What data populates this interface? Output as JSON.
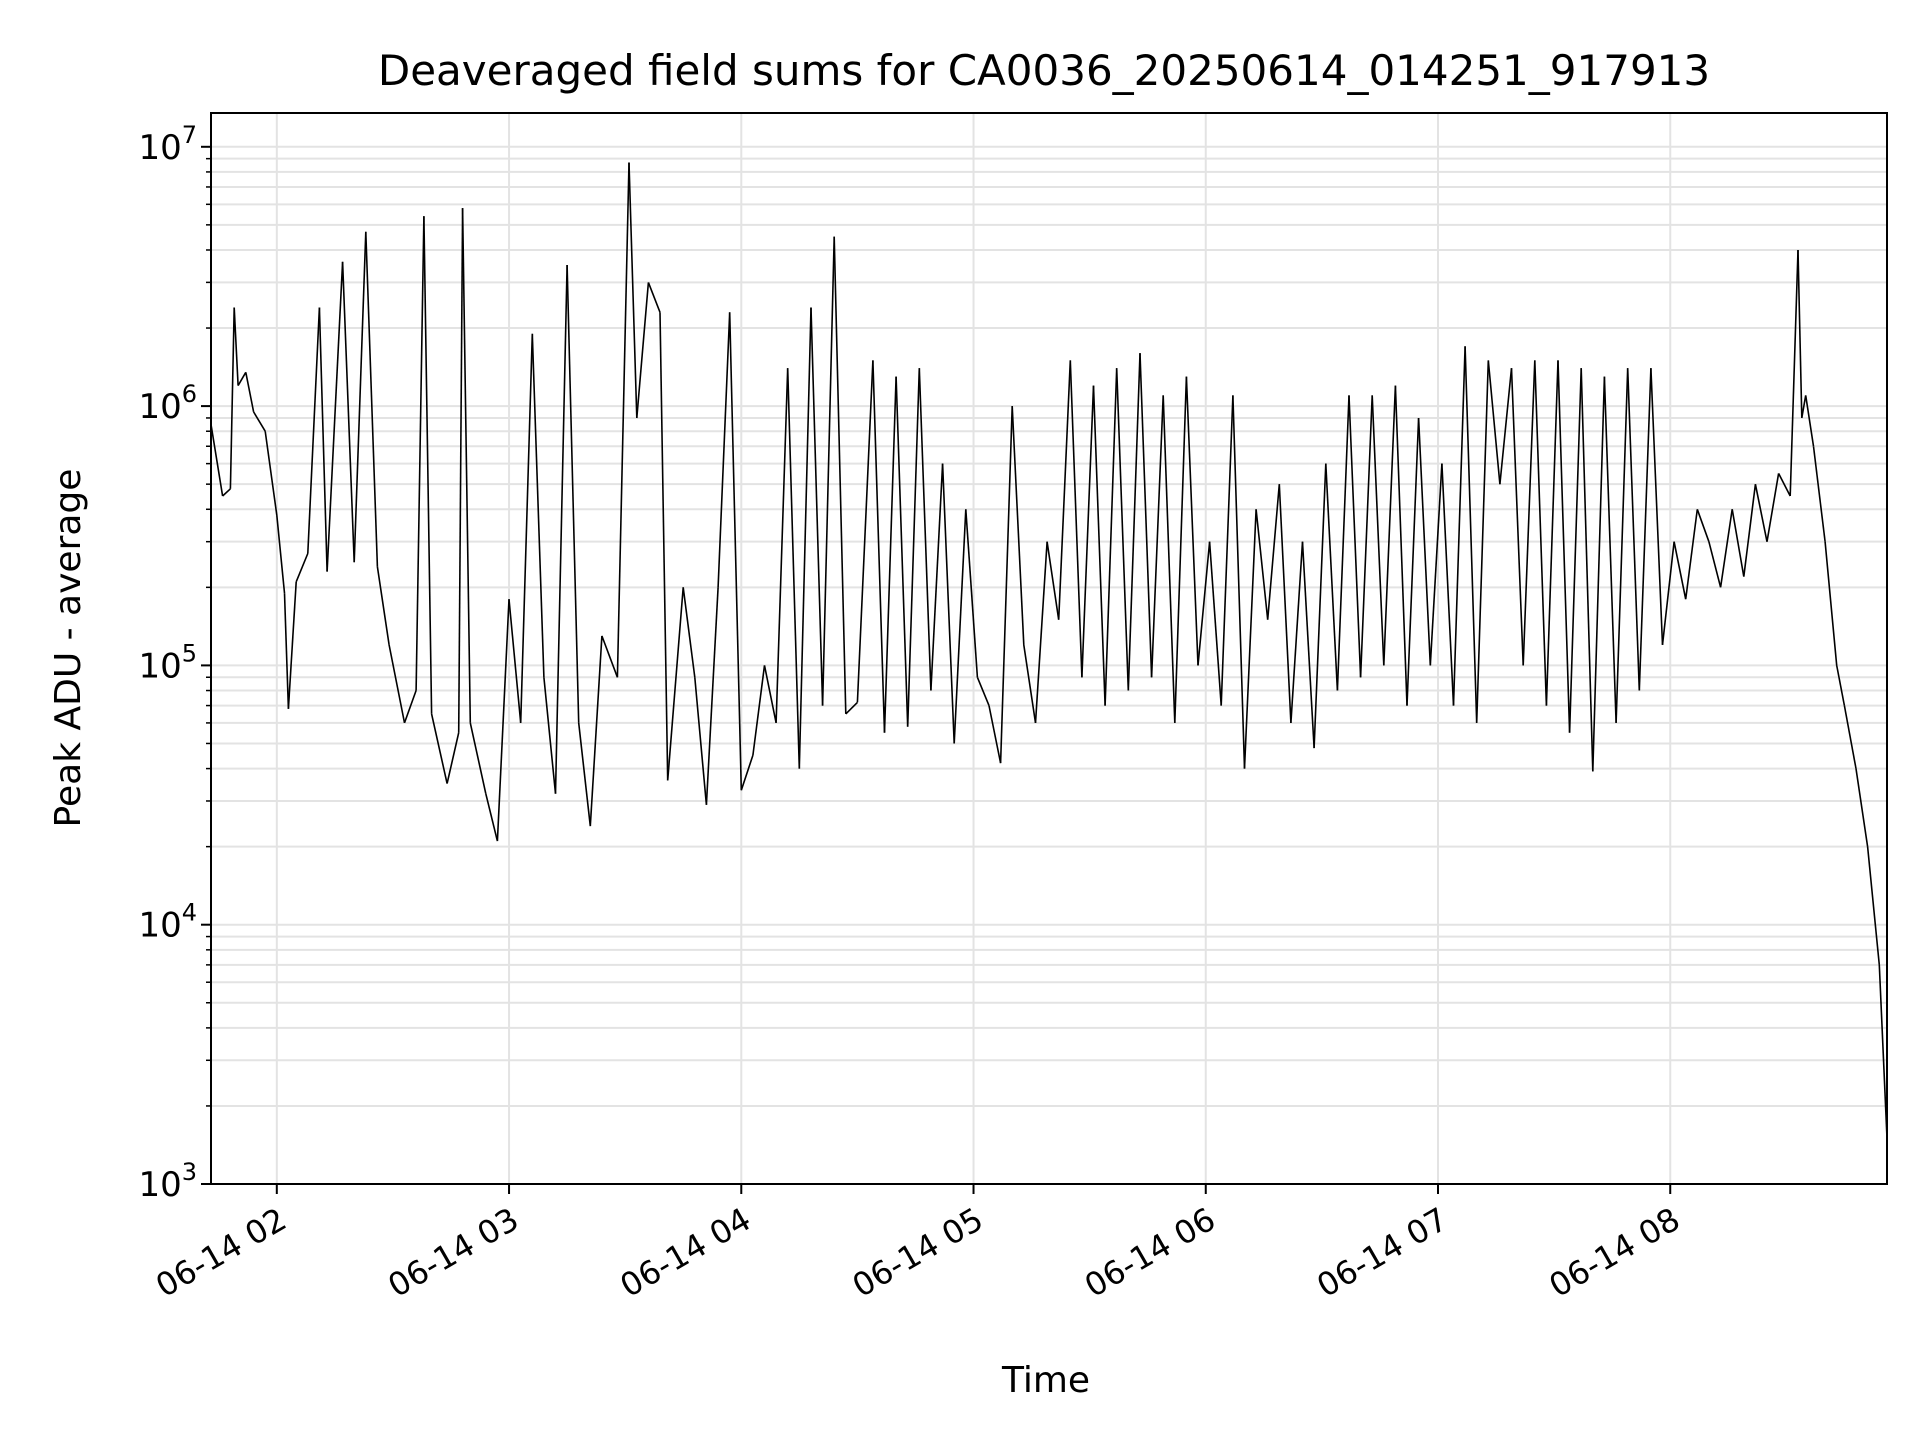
{
  "chart_data": {
    "type": "line",
    "title": "Deaveraged field sums for CA0036_20250614_014251_917913",
    "xlabel": "Time",
    "ylabel": "Peak ADU - average",
    "x_axis": {
      "kind": "time",
      "range": [
        "06-14 01:43:00",
        "06-14 08:56:00"
      ],
      "ticks": [
        {
          "label": "06-14 02",
          "value": "06-14 02:00"
        },
        {
          "label": "06-14 03",
          "value": "06-14 03:00"
        },
        {
          "label": "06-14 04",
          "value": "06-14 04:00"
        },
        {
          "label": "06-14 05",
          "value": "06-14 05:00"
        },
        {
          "label": "06-14 06",
          "value": "06-14 06:00"
        },
        {
          "label": "06-14 07",
          "value": "06-14 07:00"
        },
        {
          "label": "06-14 08",
          "value": "06-14 08:00"
        }
      ],
      "tick_label_rotation": 30
    },
    "y_axis": {
      "scale": "log",
      "range": [
        1000,
        13500000
      ],
      "ticks": [
        {
          "base": "10",
          "exp": "3",
          "value": 1000
        },
        {
          "base": "10",
          "exp": "4",
          "value": 10000
        },
        {
          "base": "10",
          "exp": "5",
          "value": 100000
        },
        {
          "base": "10",
          "exp": "6",
          "value": 1000000
        },
        {
          "base": "10",
          "exp": "7",
          "value": 10000000
        }
      ]
    },
    "grid": true,
    "series": [
      {
        "color": "#000000",
        "points": [
          [
            "06-14 01:43",
            850000
          ],
          [
            "06-14 01:46",
            450000
          ],
          [
            "06-14 01:48",
            480000
          ],
          [
            "06-14 01:49",
            2400000
          ],
          [
            "06-14 01:50",
            1200000
          ],
          [
            "06-14 01:52",
            1350000
          ],
          [
            "06-14 01:54",
            950000
          ],
          [
            "06-14 01:57",
            800000
          ],
          [
            "06-14 02:00",
            380000
          ],
          [
            "06-14 02:02",
            190000
          ],
          [
            "06-14 02:03",
            68000
          ],
          [
            "06-14 02:05",
            210000
          ],
          [
            "06-14 02:08",
            270000
          ],
          [
            "06-14 02:11",
            2400000
          ],
          [
            "06-14 02:13",
            230000
          ],
          [
            "06-14 02:17",
            3600000
          ],
          [
            "06-14 02:20",
            250000
          ],
          [
            "06-14 02:23",
            4700000
          ],
          [
            "06-14 02:26",
            240000
          ],
          [
            "06-14 02:29",
            120000
          ],
          [
            "06-14 02:33",
            60000
          ],
          [
            "06-14 02:36",
            80000
          ],
          [
            "06-14 02:38",
            5400000
          ],
          [
            "06-14 02:40",
            65000
          ],
          [
            "06-14 02:44",
            35000
          ],
          [
            "06-14 02:47",
            55000
          ],
          [
            "06-14 02:48",
            5800000
          ],
          [
            "06-14 02:50",
            60000
          ],
          [
            "06-14 02:54",
            32000
          ],
          [
            "06-14 02:57",
            21000
          ],
          [
            "06-14 03:00",
            180000
          ],
          [
            "06-14 03:03",
            60000
          ],
          [
            "06-14 03:06",
            1900000
          ],
          [
            "06-14 03:09",
            90000
          ],
          [
            "06-14 03:12",
            32000
          ],
          [
            "06-14 03:15",
            3500000
          ],
          [
            "06-14 03:18",
            60000
          ],
          [
            "06-14 03:21",
            24000
          ],
          [
            "06-14 03:24",
            130000
          ],
          [
            "06-14 03:28",
            90000
          ],
          [
            "06-14 03:31",
            8700000
          ],
          [
            "06-14 03:33",
            900000
          ],
          [
            "06-14 03:36",
            3000000
          ],
          [
            "06-14 03:39",
            2300000
          ],
          [
            "06-14 03:41",
            36000
          ],
          [
            "06-14 03:45",
            200000
          ],
          [
            "06-14 03:48",
            90000
          ],
          [
            "06-14 03:51",
            29000
          ],
          [
            "06-14 03:54",
            200000
          ],
          [
            "06-14 03:57",
            2300000
          ],
          [
            "06-14 04:00",
            33000
          ],
          [
            "06-14 04:03",
            45000
          ],
          [
            "06-14 04:06",
            100000
          ],
          [
            "06-14 04:09",
            60000
          ],
          [
            "06-14 04:12",
            1400000
          ],
          [
            "06-14 04:15",
            40000
          ],
          [
            "06-14 04:18",
            2400000
          ],
          [
            "06-14 04:21",
            70000
          ],
          [
            "06-14 04:24",
            4500000
          ],
          [
            "06-14 04:27",
            65000
          ],
          [
            "06-14 04:30",
            72000
          ],
          [
            "06-14 04:34",
            1500000
          ],
          [
            "06-14 04:37",
            55000
          ],
          [
            "06-14 04:40",
            1300000
          ],
          [
            "06-14 04:43",
            58000
          ],
          [
            "06-14 04:46",
            1400000
          ],
          [
            "06-14 04:49",
            80000
          ],
          [
            "06-14 04:52",
            600000
          ],
          [
            "06-14 04:55",
            50000
          ],
          [
            "06-14 04:58",
            400000
          ],
          [
            "06-14 05:01",
            90000
          ],
          [
            "06-14 05:04",
            70000
          ],
          [
            "06-14 05:07",
            42000
          ],
          [
            "06-14 05:10",
            1000000
          ],
          [
            "06-14 05:13",
            120000
          ],
          [
            "06-14 05:16",
            60000
          ],
          [
            "06-14 05:19",
            300000
          ],
          [
            "06-14 05:22",
            150000
          ],
          [
            "06-14 05:25",
            1500000
          ],
          [
            "06-14 05:28",
            90000
          ],
          [
            "06-14 05:31",
            1200000
          ],
          [
            "06-14 05:34",
            70000
          ],
          [
            "06-14 05:37",
            1400000
          ],
          [
            "06-14 05:40",
            80000
          ],
          [
            "06-14 05:43",
            1600000
          ],
          [
            "06-14 05:46",
            90000
          ],
          [
            "06-14 05:49",
            1100000
          ],
          [
            "06-14 05:52",
            60000
          ],
          [
            "06-14 05:55",
            1300000
          ],
          [
            "06-14 05:58",
            100000
          ],
          [
            "06-14 06:01",
            300000
          ],
          [
            "06-14 06:04",
            70000
          ],
          [
            "06-14 06:07",
            1100000
          ],
          [
            "06-14 06:10",
            40000
          ],
          [
            "06-14 06:13",
            400000
          ],
          [
            "06-14 06:16",
            150000
          ],
          [
            "06-14 06:19",
            500000
          ],
          [
            "06-14 06:22",
            60000
          ],
          [
            "06-14 06:25",
            300000
          ],
          [
            "06-14 06:28",
            48000
          ],
          [
            "06-14 06:31",
            600000
          ],
          [
            "06-14 06:34",
            80000
          ],
          [
            "06-14 06:37",
            1100000
          ],
          [
            "06-14 06:40",
            90000
          ],
          [
            "06-14 06:43",
            1100000
          ],
          [
            "06-14 06:46",
            100000
          ],
          [
            "06-14 06:49",
            1200000
          ],
          [
            "06-14 06:52",
            70000
          ],
          [
            "06-14 06:55",
            900000
          ],
          [
            "06-14 06:58",
            100000
          ],
          [
            "06-14 07:01",
            600000
          ],
          [
            "06-14 07:04",
            70000
          ],
          [
            "06-14 07:07",
            1700000
          ],
          [
            "06-14 07:10",
            60000
          ],
          [
            "06-14 07:13",
            1500000
          ],
          [
            "06-14 07:16",
            500000
          ],
          [
            "06-14 07:19",
            1400000
          ],
          [
            "06-14 07:22",
            100000
          ],
          [
            "06-14 07:25",
            1500000
          ],
          [
            "06-14 07:28",
            70000
          ],
          [
            "06-14 07:31",
            1500000
          ],
          [
            "06-14 07:34",
            55000
          ],
          [
            "06-14 07:37",
            1400000
          ],
          [
            "06-14 07:40",
            39000
          ],
          [
            "06-14 07:43",
            1300000
          ],
          [
            "06-14 07:46",
            60000
          ],
          [
            "06-14 07:49",
            1400000
          ],
          [
            "06-14 07:52",
            80000
          ],
          [
            "06-14 07:55",
            1400000
          ],
          [
            "06-14 07:58",
            120000
          ],
          [
            "06-14 08:01",
            300000
          ],
          [
            "06-14 08:04",
            180000
          ],
          [
            "06-14 08:07",
            400000
          ],
          [
            "06-14 08:10",
            300000
          ],
          [
            "06-14 08:13",
            200000
          ],
          [
            "06-14 08:16",
            400000
          ],
          [
            "06-14 08:19",
            220000
          ],
          [
            "06-14 08:22",
            500000
          ],
          [
            "06-14 08:25",
            300000
          ],
          [
            "06-14 08:28",
            550000
          ],
          [
            "06-14 08:31",
            450000
          ],
          [
            "06-14 08:33",
            4000000
          ],
          [
            "06-14 08:34",
            900000
          ],
          [
            "06-14 08:35",
            1100000
          ],
          [
            "06-14 08:37",
            700000
          ],
          [
            "06-14 08:40",
            300000
          ],
          [
            "06-14 08:43",
            100000
          ],
          [
            "06-14 08:45",
            70000
          ],
          [
            "06-14 08:48",
            40000
          ],
          [
            "06-14 08:51",
            20000
          ],
          [
            "06-14 08:54",
            7000
          ],
          [
            "06-14 08:56",
            1500
          ]
        ]
      }
    ]
  }
}
